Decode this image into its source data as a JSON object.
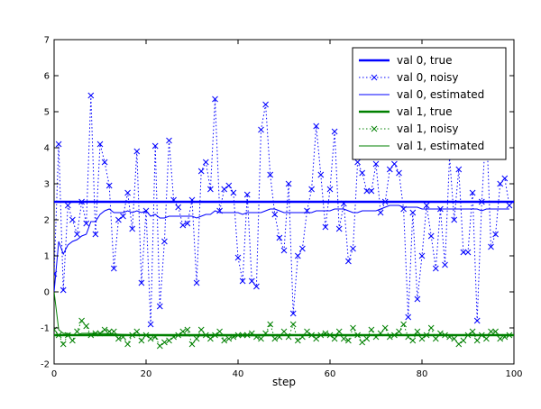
{
  "chart_data": {
    "type": "line",
    "title": "",
    "xlabel": "step",
    "ylabel": "",
    "xlim": [
      0,
      100
    ],
    "ylim": [
      -2,
      7
    ],
    "xticks": [
      0,
      20,
      40,
      60,
      80,
      100
    ],
    "yticks": [
      -2,
      -1,
      0,
      1,
      2,
      3,
      4,
      5,
      6,
      7
    ],
    "grid": false,
    "legend_position": "top-right",
    "series": [
      {
        "name": "val 0, true",
        "color": "#0000ff",
        "style": "solid-thick",
        "x": [
          0,
          100
        ],
        "y": [
          2.5,
          2.5
        ]
      },
      {
        "name": "val 0, noisy",
        "color": "#0000ff",
        "style": "dotted-x",
        "x": [
          0,
          1,
          2,
          3,
          4,
          5,
          6,
          7,
          8,
          9,
          10,
          11,
          12,
          13,
          14,
          15,
          16,
          17,
          18,
          19,
          20,
          21,
          22,
          23,
          24,
          25,
          26,
          27,
          28,
          29,
          30,
          31,
          32,
          33,
          34,
          35,
          36,
          37,
          38,
          39,
          40,
          41,
          42,
          43,
          44,
          45,
          46,
          47,
          48,
          49,
          50,
          51,
          52,
          53,
          54,
          55,
          56,
          57,
          58,
          59,
          60,
          61,
          62,
          63,
          64,
          65,
          66,
          67,
          68,
          69,
          70,
          71,
          72,
          73,
          74,
          75,
          76,
          77,
          78,
          79,
          80,
          81,
          82,
          83,
          84,
          85,
          86,
          87,
          88,
          89,
          90,
          91,
          92,
          93,
          94,
          95,
          96,
          97,
          98,
          99
        ],
        "y": [
          0.5,
          4.1,
          0.05,
          2.4,
          2.0,
          1.6,
          2.5,
          1.9,
          5.45,
          1.6,
          4.1,
          3.6,
          2.95,
          0.65,
          2.0,
          2.1,
          2.75,
          1.75,
          3.9,
          0.25,
          2.25,
          -0.9,
          4.05,
          -0.4,
          1.4,
          4.2,
          2.55,
          2.35,
          1.85,
          1.9,
          2.55,
          0.25,
          3.35,
          3.6,
          2.85,
          5.35,
          2.25,
          2.85,
          2.95,
          2.75,
          0.95,
          0.3,
          2.7,
          0.3,
          0.15,
          4.5,
          5.2,
          3.25,
          2.15,
          1.5,
          1.15,
          3.0,
          -0.6,
          1.0,
          1.2,
          2.25,
          2.85,
          4.6,
          3.25,
          1.8,
          2.85,
          4.45,
          1.75,
          2.45,
          0.85,
          1.2,
          3.6,
          3.3,
          2.8,
          2.8,
          3.55,
          2.2,
          2.5,
          3.4,
          3.55,
          3.3,
          2.3,
          -0.7,
          2.2,
          -0.2,
          1.0,
          2.4,
          1.55,
          0.65,
          2.3,
          0.75,
          3.75,
          2.0,
          3.4,
          1.1,
          1.1,
          2.75,
          -0.8,
          2.5,
          4.7,
          1.25,
          1.6,
          3.0,
          3.15,
          2.4
        ]
      },
      {
        "name": "val 0, estimated",
        "color": "#0000ff",
        "style": "solid-thin",
        "x": [
          0,
          1,
          2,
          3,
          4,
          5,
          6,
          7,
          8,
          9,
          10,
          11,
          12,
          13,
          14,
          15,
          16,
          17,
          18,
          19,
          20,
          21,
          22,
          23,
          24,
          25,
          26,
          27,
          28,
          29,
          30,
          31,
          32,
          33,
          34,
          35,
          36,
          37,
          38,
          39,
          40,
          41,
          42,
          43,
          44,
          45,
          46,
          47,
          48,
          49,
          50,
          51,
          52,
          53,
          54,
          55,
          56,
          57,
          58,
          59,
          60,
          61,
          62,
          63,
          64,
          65,
          66,
          67,
          68,
          69,
          70,
          71,
          72,
          73,
          74,
          75,
          76,
          77,
          78,
          79,
          80,
          81,
          82,
          83,
          84,
          85,
          86,
          87,
          88,
          89,
          90,
          91,
          92,
          93,
          94,
          95,
          96,
          97,
          98,
          99
        ],
        "y": [
          0.0,
          1.4,
          1.05,
          1.3,
          1.4,
          1.45,
          1.55,
          1.6,
          1.95,
          1.95,
          2.15,
          2.25,
          2.3,
          2.2,
          2.2,
          2.2,
          2.25,
          2.2,
          2.25,
          2.2,
          2.25,
          2.1,
          2.15,
          2.05,
          2.05,
          2.1,
          2.1,
          2.1,
          2.1,
          2.1,
          2.1,
          2.05,
          2.1,
          2.15,
          2.15,
          2.25,
          2.2,
          2.2,
          2.2,
          2.2,
          2.2,
          2.15,
          2.2,
          2.2,
          2.2,
          2.2,
          2.25,
          2.3,
          2.3,
          2.25,
          2.2,
          2.2,
          2.2,
          2.2,
          2.2,
          2.2,
          2.2,
          2.25,
          2.25,
          2.25,
          2.25,
          2.3,
          2.3,
          2.3,
          2.25,
          2.2,
          2.2,
          2.25,
          2.25,
          2.25,
          2.25,
          2.3,
          2.35,
          2.4,
          2.4,
          2.4,
          2.35,
          2.35,
          2.35,
          2.35,
          2.3,
          2.3,
          2.3,
          2.3,
          2.3,
          2.3,
          2.3,
          2.3,
          2.3,
          2.3,
          2.3,
          2.3,
          2.3,
          2.25,
          2.3,
          2.3,
          2.3,
          2.3,
          2.3,
          2.3
        ]
      },
      {
        "name": "val 1, true",
        "color": "#008000",
        "style": "solid-thick",
        "x": [
          0,
          100
        ],
        "y": [
          -1.2,
          -1.2
        ]
      },
      {
        "name": "val 1, noisy",
        "color": "#008000",
        "style": "dotted-x",
        "x": [
          0,
          1,
          2,
          3,
          4,
          5,
          6,
          7,
          8,
          9,
          10,
          11,
          12,
          13,
          14,
          15,
          16,
          17,
          18,
          19,
          20,
          21,
          22,
          23,
          24,
          25,
          26,
          27,
          28,
          29,
          30,
          31,
          32,
          33,
          34,
          35,
          36,
          37,
          38,
          39,
          40,
          41,
          42,
          43,
          44,
          45,
          46,
          47,
          48,
          49,
          50,
          51,
          52,
          53,
          54,
          55,
          56,
          57,
          58,
          59,
          60,
          61,
          62,
          63,
          64,
          65,
          66,
          67,
          68,
          69,
          70,
          71,
          72,
          73,
          74,
          75,
          76,
          77,
          78,
          79,
          80,
          81,
          82,
          83,
          84,
          85,
          86,
          87,
          88,
          89,
          90,
          91,
          92,
          93,
          94,
          95,
          96,
          97,
          98,
          99
        ],
        "y": [
          -1.05,
          -1.2,
          -1.45,
          -1.2,
          -1.35,
          -1.1,
          -0.8,
          -0.95,
          -1.2,
          -1.15,
          -1.15,
          -1.05,
          -1.1,
          -1.1,
          -1.3,
          -1.25,
          -1.45,
          -1.2,
          -1.1,
          -1.35,
          -1.2,
          -1.3,
          -1.25,
          -1.5,
          -1.4,
          -1.35,
          -1.25,
          -1.2,
          -1.1,
          -1.05,
          -1.45,
          -1.3,
          -1.05,
          -1.2,
          -1.3,
          -1.2,
          -1.1,
          -1.35,
          -1.3,
          -1.25,
          -1.2,
          -1.2,
          -1.2,
          -1.15,
          -1.25,
          -1.3,
          -1.15,
          -0.9,
          -1.3,
          -1.25,
          -1.1,
          -1.25,
          -0.9,
          -1.35,
          -1.25,
          -1.1,
          -1.2,
          -1.3,
          -1.2,
          -1.15,
          -1.2,
          -1.3,
          -1.1,
          -1.3,
          -1.35,
          -1.0,
          -1.2,
          -1.4,
          -1.3,
          -1.05,
          -1.25,
          -1.15,
          -1.0,
          -1.25,
          -1.2,
          -1.1,
          -0.9,
          -1.25,
          -1.35,
          -1.1,
          -1.3,
          -1.2,
          -1.0,
          -1.3,
          -1.15,
          -1.2,
          -1.25,
          -1.3,
          -1.45,
          -1.35,
          -1.2,
          -1.1,
          -1.35,
          -1.2,
          -1.3,
          -1.1,
          -1.1,
          -1.3,
          -1.25,
          -1.2
        ]
      },
      {
        "name": "val 1, estimated",
        "color": "#008000",
        "style": "solid-thin",
        "x": [
          0,
          1,
          2,
          3,
          4,
          5,
          6,
          7,
          8,
          9,
          10,
          15,
          20,
          25,
          30,
          35,
          40,
          45,
          50,
          55,
          60,
          65,
          70,
          75,
          80,
          85,
          90,
          95,
          99
        ],
        "y": [
          0.0,
          -1.05,
          -1.15,
          -1.15,
          -1.2,
          -1.2,
          -1.15,
          -1.15,
          -1.15,
          -1.15,
          -1.15,
          -1.18,
          -1.2,
          -1.22,
          -1.22,
          -1.22,
          -1.22,
          -1.22,
          -1.21,
          -1.21,
          -1.21,
          -1.22,
          -1.21,
          -1.2,
          -1.2,
          -1.2,
          -1.21,
          -1.21,
          -1.21
        ]
      }
    ]
  }
}
